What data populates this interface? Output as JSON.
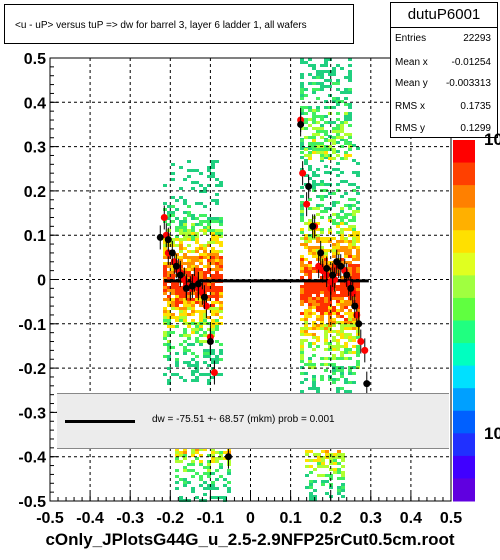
{
  "chart_data": {
    "type": "scatter",
    "title": "<u - uP>       versus  tuP =>  dw for barrel 3, layer 6 ladder 1, all wafers",
    "xlim": [
      -0.5,
      0.5
    ],
    "ylim": [
      -0.5,
      0.5
    ],
    "x_ticks": [
      "-0.5",
      "-0.4",
      "-0.3",
      "-0.2",
      "-0.1",
      "0",
      "0.1",
      "0.2",
      "0.3",
      "0.4",
      "0.5"
    ],
    "y_ticks": [
      "-0.5",
      "-0.4",
      "-0.3",
      "-0.2",
      "-0.1",
      "0",
      "0.1",
      "0.2",
      "0.3",
      "0.4",
      "0.5"
    ],
    "grid": true,
    "palette_labels": [
      "10",
      "10"
    ],
    "stats": {
      "name": "dutuP6001",
      "entries": [
        {
          "label": "Entries",
          "value": "22293"
        },
        {
          "label": "Mean x",
          "value": "-0.01254"
        },
        {
          "label": "Mean y",
          "value": "-0.003313"
        },
        {
          "label": "RMS x",
          "value": "0.1735"
        },
        {
          "label": "RMS y",
          "value": "0.1299"
        }
      ]
    },
    "fit": {
      "legend": "dw =  -75.51 +- 68.57 (mkm) prob = 0.001",
      "line": [
        [
          -0.215,
          -0.003
        ],
        [
          0.295,
          -0.003
        ]
      ],
      "color": "#000000"
    },
    "series": [
      {
        "marker": "red-dot",
        "color": "#ff0000",
        "points": [
          [
            -0.215,
            0.14
          ],
          [
            -0.21,
            0.1
          ],
          [
            -0.205,
            0.06
          ],
          [
            -0.19,
            0.04
          ],
          [
            -0.18,
            0.02
          ],
          [
            -0.175,
            0.015
          ],
          [
            -0.165,
            0.0
          ],
          [
            -0.16,
            -0.015
          ],
          [
            -0.15,
            -0.02
          ],
          [
            -0.14,
            0.0
          ],
          [
            -0.13,
            -0.02
          ],
          [
            -0.12,
            -0.03
          ],
          [
            -0.11,
            -0.06
          ],
          [
            -0.1,
            -0.13
          ],
          [
            -0.09,
            -0.21
          ],
          [
            0.125,
            0.36
          ],
          [
            0.13,
            0.24
          ],
          [
            0.14,
            0.17
          ],
          [
            0.16,
            0.12
          ],
          [
            0.17,
            0.03
          ],
          [
            0.18,
            0.02
          ],
          [
            0.19,
            0.01
          ],
          [
            0.2,
            -0.02
          ],
          [
            0.21,
            0.0
          ],
          [
            0.22,
            0.03
          ],
          [
            0.235,
            0.02
          ],
          [
            0.245,
            -0.01
          ],
          [
            0.255,
            -0.03
          ],
          [
            0.265,
            -0.08
          ],
          [
            0.275,
            -0.14
          ],
          [
            0.285,
            -0.16
          ],
          [
            0.2,
            -0.005
          ]
        ]
      },
      {
        "marker": "black-dot",
        "color": "#000000",
        "points": [
          [
            -0.225,
            0.095
          ],
          [
            -0.205,
            0.09
          ],
          [
            -0.195,
            0.06
          ],
          [
            -0.185,
            0.03
          ],
          [
            -0.175,
            0.01
          ],
          [
            -0.16,
            -0.02
          ],
          [
            -0.145,
            -0.015
          ],
          [
            -0.13,
            -0.01
          ],
          [
            -0.115,
            -0.04
          ],
          [
            -0.1,
            -0.14
          ],
          [
            -0.055,
            -0.4
          ],
          [
            0.125,
            0.35
          ],
          [
            0.145,
            0.21
          ],
          [
            0.155,
            0.12
          ],
          [
            0.175,
            0.06
          ],
          [
            0.19,
            0.025
          ],
          [
            0.205,
            0.01
          ],
          [
            0.215,
            0.04
          ],
          [
            0.225,
            0.03
          ],
          [
            0.24,
            0.01
          ],
          [
            0.25,
            -0.02
          ],
          [
            0.26,
            -0.06
          ],
          [
            0.27,
            -0.1
          ],
          [
            0.29,
            -0.235
          ]
        ]
      }
    ],
    "file_name": "cOnly_JPlotsG44G_u_2.5-2.9NFP25rCut0.5cm.root"
  }
}
